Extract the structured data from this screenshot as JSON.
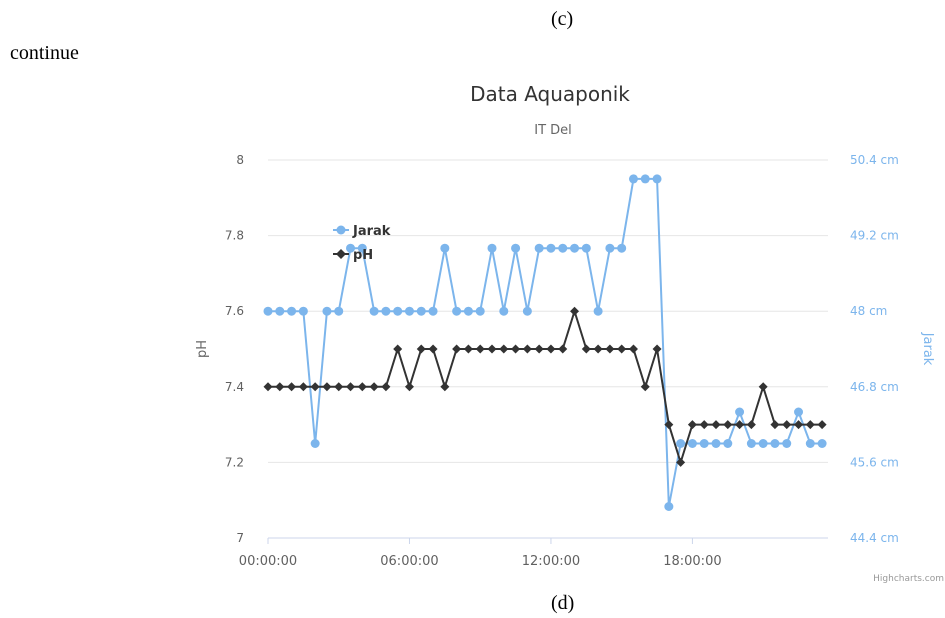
{
  "captions": {
    "top": "(c)",
    "continue": "continue",
    "bottom": "(d)"
  },
  "credit": "Highcharts.com",
  "colors": {
    "jarak": "#7cb5ec",
    "ph": "#333333",
    "grid": "#e6e6e6"
  },
  "chart_data": {
    "type": "line",
    "title": "Data Aquaponik",
    "subtitle": "IT Del",
    "xlabel": "",
    "ylabel": "pH",
    "y2label": "Jarak",
    "ylim": [
      7,
      8
    ],
    "y2lim": [
      44.4,
      50.4
    ],
    "yticks": [
      "7",
      "7.2",
      "7.4",
      "7.6",
      "7.8",
      "8"
    ],
    "y2ticks": [
      "44.4 cm",
      "45.6 cm",
      "46.8 cm",
      "48 cm",
      "49.2 cm",
      "50.4 cm"
    ],
    "xticks": [
      "00:00:00",
      "06:00:00",
      "12:00:00",
      "18:00:00"
    ],
    "xtick_hours": [
      0,
      6,
      12,
      18
    ],
    "legend_position": "top-left",
    "grid": true,
    "series": [
      {
        "name": "Jarak",
        "axis": "right",
        "x_hours": [
          0.0,
          0.5,
          1.0,
          1.5,
          2.0,
          2.5,
          3.0,
          3.5,
          4.0,
          4.5,
          5.0,
          5.5,
          6.0,
          6.5,
          7.0,
          7.5,
          8.0,
          8.5,
          9.0,
          9.5,
          10.0,
          10.5,
          11.0,
          11.5,
          12.0,
          12.5,
          13.0,
          13.5,
          14.0,
          14.5,
          15.0,
          15.5,
          16.0,
          16.5,
          17.0,
          17.5,
          18.0,
          18.5,
          19.0,
          19.5,
          20.0,
          20.5,
          21.0,
          21.5,
          22.0,
          22.5,
          23.0,
          23.5
        ],
        "values": [
          48,
          48,
          48,
          48,
          45.9,
          48,
          48,
          49,
          49,
          48,
          48,
          48,
          48,
          48,
          48,
          49,
          48,
          48,
          48,
          49,
          48,
          49,
          48,
          49,
          49,
          49,
          49,
          49,
          48,
          49,
          49,
          50.1,
          50.1,
          50.1,
          44.9,
          45.9,
          45.9,
          45.9,
          45.9,
          45.9,
          46.4,
          45.9,
          45.9,
          45.9,
          45.9,
          46.4,
          45.9,
          45.9
        ]
      },
      {
        "name": "pH",
        "axis": "left",
        "x_hours": [
          0.0,
          0.5,
          1.0,
          1.5,
          2.0,
          2.5,
          3.0,
          3.5,
          4.0,
          4.5,
          5.0,
          5.5,
          6.0,
          6.5,
          7.0,
          7.5,
          8.0,
          8.5,
          9.0,
          9.5,
          10.0,
          10.5,
          11.0,
          11.5,
          12.0,
          12.5,
          13.0,
          13.5,
          14.0,
          14.5,
          15.0,
          15.5,
          16.0,
          16.5,
          17.0,
          17.5,
          18.0,
          18.5,
          19.0,
          19.5,
          20.0,
          20.5,
          21.0,
          21.5,
          22.0,
          22.5,
          23.0,
          23.5
        ],
        "values": [
          7.4,
          7.4,
          7.4,
          7.4,
          7.4,
          7.4,
          7.4,
          7.4,
          7.4,
          7.4,
          7.4,
          7.5,
          7.4,
          7.5,
          7.5,
          7.4,
          7.5,
          7.5,
          7.5,
          7.5,
          7.5,
          7.5,
          7.5,
          7.5,
          7.5,
          7.5,
          7.6,
          7.5,
          7.5,
          7.5,
          7.5,
          7.5,
          7.4,
          7.5,
          7.3,
          7.2,
          7.3,
          7.3,
          7.3,
          7.3,
          7.3,
          7.3,
          7.4,
          7.3,
          7.3,
          7.3,
          7.3,
          7.3
        ]
      }
    ]
  }
}
